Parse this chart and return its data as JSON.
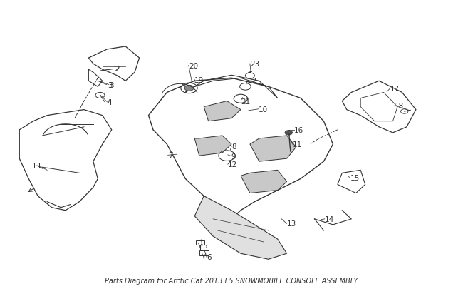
{
  "bg_color": "#ffffff",
  "fig_width": 6.5,
  "fig_height": 4.06,
  "dpi": 100,
  "line_color": "#333333",
  "label_fontsize": 7.5,
  "title": "Parts Diagram for Arctic Cat 2013 F5 SNOWMOBILE CONSOLE ASSEMBLY",
  "title_fontsize": 7.0
}
